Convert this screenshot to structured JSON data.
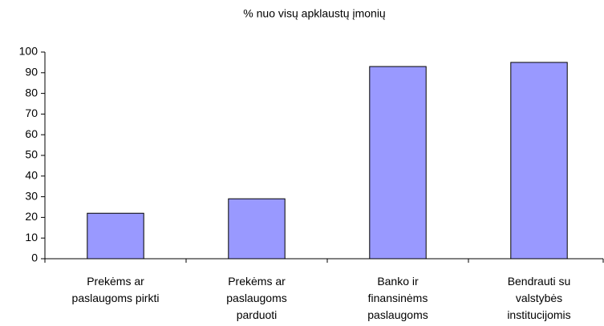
{
  "chart_data": {
    "type": "bar",
    "title": "% nuo visų apklaustų įmonių",
    "categories": [
      "Prekėms ar\npaslaugoms pirkti",
      "Prekėms ar\npaslaugoms\nparduoti",
      "Banko ir\nfinansinėms\npaslaugoms",
      "Bendrauti su\nvalstybės\ninstitucijomis"
    ],
    "values": [
      22,
      29,
      93,
      95
    ],
    "color": "#9999ff",
    "ylim": [
      0,
      100
    ],
    "yticks": [
      0,
      10,
      20,
      30,
      40,
      50,
      60,
      70,
      80,
      90,
      100
    ],
    "grid": false
  }
}
